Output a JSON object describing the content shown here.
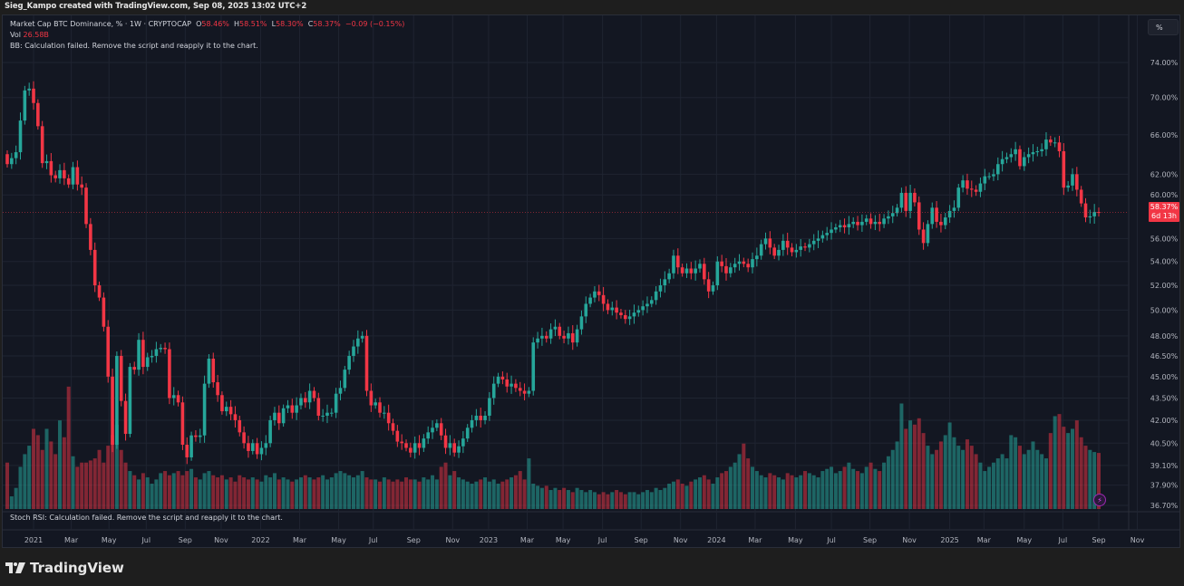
{
  "header": {
    "attribution": "Sieg_Kampo created with TradingView.com, Sep 08, 2025 13:02 UTC+2"
  },
  "legend": {
    "symbol": "Market Cap BTC Dominance, % · 1W · CRYPTOCAP",
    "o_label": "O",
    "o": "58.46%",
    "h_label": "H",
    "h": "58.51%",
    "l_label": "L",
    "l": "58.30%",
    "c_label": "C",
    "c": "58.37%",
    "change": "−0.09 (−0.15%)",
    "vol_label": "Vol",
    "vol": "26.58B",
    "bb_msg": "BB: Calculation failed. Remove the script and reapply it to the chart."
  },
  "scale_button": "%",
  "last_price": {
    "value": "58.37%",
    "countdown": "6d 13h"
  },
  "rsi_msg": "Stoch RSI: Calculation failed. Remove the script and reapply it to the chart.",
  "brand": "TradingView",
  "colors": {
    "up": "#26a69a",
    "down": "#f23645",
    "bg": "#131722",
    "grid": "#1f2431"
  },
  "chart_data": {
    "type": "candlestick",
    "title": "Market Cap BTC Dominance, % · 1W · CRYPTOCAP",
    "ylabel": "%",
    "yscale": "log",
    "ylim": [
      36.7,
      74.0
    ],
    "y_ticks": [
      "74.00%",
      "70.00%",
      "66.00%",
      "62.00%",
      "60.00%",
      "56.00%",
      "54.00%",
      "52.00%",
      "50.00%",
      "48.00%",
      "46.50%",
      "45.00%",
      "43.50%",
      "42.00%",
      "40.50%",
      "39.10%",
      "37.90%",
      "36.70%"
    ],
    "y_tick_values": [
      74,
      70,
      66,
      62,
      60,
      56,
      54,
      52,
      50,
      48,
      46.5,
      45,
      43.5,
      42,
      40.5,
      39.1,
      37.9,
      36.7
    ],
    "x_ticks": [
      "2021",
      "Mar",
      "May",
      "Jul",
      "Sep",
      "Nov",
      "2022",
      "Mar",
      "May",
      "Jul",
      "Sep",
      "Nov",
      "2023",
      "Mar",
      "May",
      "Jul",
      "Sep",
      "Nov",
      "2024",
      "Mar",
      "May",
      "Jul",
      "Sep",
      "Nov",
      "2025",
      "Mar",
      "May",
      "Jul",
      "Sep",
      "Nov"
    ],
    "x_tick_week_index": [
      6.0,
      14.6,
      23.2,
      31.7,
      40.6,
      48.8,
      57.8,
      66.7,
      75.6,
      83.5,
      92.7,
      101.6,
      109.8,
      118.6,
      126.8,
      135.8,
      144.6,
      153.6,
      161.8,
      170.6,
      179.8,
      188.0,
      196.8,
      205.8,
      215.0,
      222.8,
      232.0,
      240.8,
      249.0,
      257.8
    ],
    "first_week": "2020-11-16",
    "interval": "1W",
    "weekly_close": [
      63,
      63.6,
      64.2,
      67.5,
      70.8,
      71,
      69.4,
      66.9,
      63.1,
      63.3,
      61.9,
      61.6,
      62.4,
      61.6,
      61,
      62.7,
      61,
      60.7,
      57.3,
      55,
      52,
      51,
      48.7,
      45,
      40.4,
      46.5,
      43.3,
      41.1,
      45.7,
      45.5,
      47.7,
      45.7,
      46.4,
      46.5,
      47,
      47.1,
      47,
      43.5,
      43.7,
      43.2,
      40.4,
      39.6,
      41,
      40.9,
      41,
      44.5,
      46.3,
      44.6,
      43.7,
      42.6,
      42.9,
      42.4,
      42,
      41.2,
      40.5,
      40,
      40.5,
      39.8,
      40.2,
      40.5,
      42,
      42.5,
      41.8,
      42.8,
      43,
      42.5,
      43,
      43.5,
      43.2,
      44,
      43.5,
      42.3,
      42.3,
      42.5,
      42.5,
      43.8,
      44.2,
      45.5,
      46.5,
      47.2,
      47.8,
      48,
      44,
      43,
      43.2,
      42.5,
      42.5,
      41.8,
      41.3,
      40.6,
      40.5,
      40.2,
      39.9,
      40.5,
      40.2,
      40.8,
      41.2,
      41.5,
      41.8,
      41,
      40.2,
      40.5,
      39.9,
      40.3,
      40.8,
      41.5,
      42,
      42.3,
      42,
      42.3,
      43.5,
      44.5,
      45,
      44.8,
      44.3,
      44.5,
      44.2,
      44,
      43.8,
      44,
      47.5,
      47.8,
      48,
      47.8,
      48.5,
      48.7,
      48,
      47.8,
      48.2,
      47.5,
      48.5,
      49.5,
      50.5,
      51,
      51.5,
      51.2,
      50.5,
      50,
      50.2,
      49.8,
      49.6,
      49.3,
      49.5,
      49.8,
      50,
      50.3,
      50.5,
      50.8,
      51.5,
      52,
      52.5,
      53,
      54.5,
      53.5,
      53,
      53.4,
      53,
      53.4,
      53.8,
      52.5,
      51.5,
      52,
      54,
      53.6,
      53,
      53.5,
      53.8,
      54,
      53.8,
      53.5,
      54.2,
      54.5,
      55.5,
      56,
      55.2,
      54.5,
      55,
      55.8,
      55.2,
      54.8,
      55,
      55.3,
      55.2,
      55.5,
      55.8,
      56,
      56.3,
      56.5,
      56.8,
      57,
      57.2,
      57,
      57.3,
      57.5,
      57.2,
      57.5,
      57.8,
      57.3,
      57.5,
      57.3,
      57.8,
      58,
      58.3,
      58.8,
      60.2,
      58.5,
      60.2,
      59.3,
      56.8,
      55.6,
      57.3,
      58.8,
      57.5,
      57.2,
      57.9,
      58.5,
      58.8,
      60.7,
      61.4,
      60.6,
      60.5,
      60.3,
      61.1,
      61.8,
      61.8,
      62,
      63,
      63.5,
      63.7,
      64,
      64.5,
      62.8,
      63.7,
      64,
      64.2,
      64.3,
      64.5,
      65.5,
      65.2,
      65.2,
      64.3,
      60.7,
      60.9,
      62,
      60.5,
      59.2,
      57.9,
      58,
      58.4,
      58.37
    ],
    "first_open": 64,
    "weekly_volume_B": [
      22,
      6,
      10,
      20,
      26,
      30,
      38,
      35,
      28,
      38,
      32,
      26,
      42,
      34,
      58,
      25,
      20,
      22,
      22,
      23,
      24,
      28,
      22,
      30,
      35,
      40,
      28,
      22,
      18,
      16,
      14,
      17,
      15,
      12,
      14,
      17,
      18,
      16,
      17,
      18,
      16,
      18,
      19,
      15,
      14,
      17,
      18,
      16,
      15,
      16,
      14,
      15,
      13,
      16,
      15,
      14,
      15,
      14,
      13,
      16,
      15,
      17,
      14,
      15,
      14,
      13,
      14,
      15,
      16,
      15,
      14,
      15,
      16,
      14,
      15,
      17,
      18,
      17,
      16,
      15,
      16,
      18,
      15,
      14,
      14,
      13,
      15,
      14,
      13,
      14,
      13,
      15,
      14,
      14,
      13,
      15,
      14,
      16,
      14,
      20,
      22,
      16,
      18,
      15,
      14,
      13,
      12,
      13,
      14,
      15,
      13,
      14,
      12,
      13,
      14,
      15,
      16,
      18,
      14,
      24,
      12,
      11,
      10,
      11,
      9,
      10,
      9,
      10,
      9,
      8,
      10,
      9,
      8,
      9,
      8,
      7,
      8,
      7,
      8,
      9,
      8,
      7,
      8,
      8,
      7,
      8,
      9,
      8,
      10,
      9,
      10,
      12,
      13,
      14,
      12,
      11,
      13,
      14,
      15,
      16,
      14,
      12,
      15,
      17,
      18,
      20,
      22,
      26,
      31,
      24,
      20,
      18,
      16,
      15,
      17,
      16,
      15,
      14,
      17,
      16,
      15,
      16,
      18,
      17,
      16,
      15,
      18,
      19,
      20,
      17,
      18,
      20,
      22,
      19,
      18,
      17,
      20,
      22,
      19,
      18,
      22,
      25,
      28,
      32,
      50,
      38,
      42,
      40,
      43,
      36,
      30,
      26,
      28,
      32,
      35,
      41,
      34,
      30,
      28,
      33,
      30,
      26,
      22,
      18,
      20,
      22,
      24,
      26,
      24,
      35,
      34,
      30,
      26,
      28,
      32,
      28,
      26,
      24,
      36,
      44,
      45,
      39,
      36,
      38,
      42,
      34,
      30,
      28,
      27,
      26.58
    ],
    "last_close_line": 58.37,
    "grid": true
  }
}
